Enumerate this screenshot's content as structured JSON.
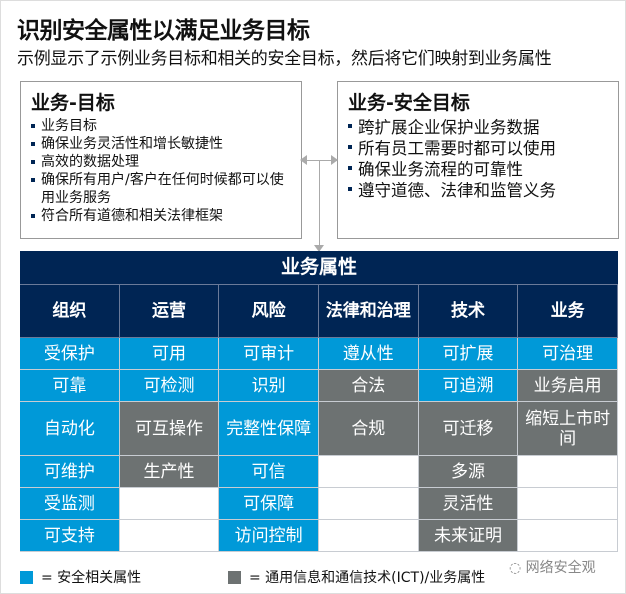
{
  "title": "识别安全属性以满足业务目标",
  "subtitle": "示例显示了示例业务目标和相关的安全目标，然后将它们映射到业务属性",
  "business_goals": {
    "heading": "业务-目标",
    "items": [
      "业务目标",
      "确保业务灵活性和增长敏捷性",
      "高效的数据处理",
      "确保所有用户/客户在任何时候都可以使用业务服务",
      "符合所有道德和相关法律框架"
    ]
  },
  "security_goals": {
    "heading": "业务-安全目标",
    "items": [
      "跨扩展企业保护业务数据",
      "所有员工需要时都可以使用",
      "确保业务流程的可靠性",
      "遵守道德、法律和监管义务"
    ]
  },
  "table": {
    "title": "业务属性",
    "columns": [
      "组织",
      "运营",
      "风险",
      "法律和治理",
      "技术",
      "业务"
    ],
    "rows": [
      [
        {
          "t": "受保护",
          "k": "b"
        },
        {
          "t": "可用",
          "k": "b"
        },
        {
          "t": "可审计",
          "k": "b"
        },
        {
          "t": "遵从性",
          "k": "b"
        },
        {
          "t": "可扩展",
          "k": "b"
        },
        {
          "t": "可治理",
          "k": "b"
        }
      ],
      [
        {
          "t": "可靠",
          "k": "b"
        },
        {
          "t": "可检测",
          "k": "b"
        },
        {
          "t": "识别",
          "k": "b"
        },
        {
          "t": "合法",
          "k": "g"
        },
        {
          "t": "可追溯",
          "k": "b"
        },
        {
          "t": "业务启用",
          "k": "g"
        }
      ],
      [
        {
          "t": "自动化",
          "k": "b"
        },
        {
          "t": "可互操作",
          "k": "g"
        },
        {
          "t": "完整性保障",
          "k": "b"
        },
        {
          "t": "合规",
          "k": "g"
        },
        {
          "t": "可迁移",
          "k": "g"
        },
        {
          "t": "缩短上市时间",
          "k": "g"
        }
      ],
      [
        {
          "t": "可维护",
          "k": "b"
        },
        {
          "t": "生产性",
          "k": "g"
        },
        {
          "t": "可信",
          "k": "b"
        },
        {
          "t": "",
          "k": "w"
        },
        {
          "t": "多源",
          "k": "g"
        },
        {
          "t": "",
          "k": "w"
        }
      ],
      [
        {
          "t": "受监测",
          "k": "b"
        },
        {
          "t": "",
          "k": "w"
        },
        {
          "t": "可保障",
          "k": "b"
        },
        {
          "t": "",
          "k": "w"
        },
        {
          "t": "灵活性",
          "k": "g"
        },
        {
          "t": "",
          "k": "w"
        }
      ],
      [
        {
          "t": "可支持",
          "k": "b"
        },
        {
          "t": "",
          "k": "w"
        },
        {
          "t": "访问控制",
          "k": "b"
        },
        {
          "t": "",
          "k": "w"
        },
        {
          "t": "未来证明",
          "k": "g"
        },
        {
          "t": "",
          "k": "w"
        }
      ]
    ]
  },
  "legend": {
    "security": "= 安全相关属性",
    "ict": "= 通用信息和通信技术(ICT)/业务属性"
  },
  "watermark": "网络安全观",
  "colors": {
    "navy": "#002554",
    "blue": "#0099d8",
    "gray": "#6d7272"
  }
}
